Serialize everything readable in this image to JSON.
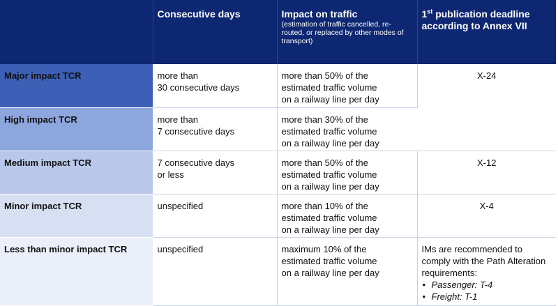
{
  "header": {
    "col1": "",
    "col2": "Consecutive days",
    "col3_title": "Impact on traffic",
    "col3_sub": "(estimation of traffic cancelled, re-routed, or replaced by other modes of transport)",
    "col4_num": "1",
    "col4_sup": "st",
    "col4_rest": "publication deadline according to Annex VII"
  },
  "rows": [
    {
      "label": "Major impact TCR",
      "days": "more than\n30 consecutive days",
      "impact": "more than 50% of the\nestimated traffic volume\non a railway line per day",
      "deadline": "X-24"
    },
    {
      "label": "High impact TCR",
      "days": "more than\n7 consecutive days",
      "impact": "more than 30% of the\nestimated traffic volume\non a railway line per day",
      "deadline": ""
    },
    {
      "label": "Medium impact TCR",
      "days": "7 consecutive days\nor less",
      "impact": "more than 50% of the\nestimated traffic volume\non a railway line per day",
      "deadline": "X-12"
    },
    {
      "label": "Minor impact TCR",
      "days": "unspecified",
      "impact": "more than 10% of the\nestimated traffic volume\non a railway line per day",
      "deadline": "X-4"
    },
    {
      "label": "Less than minor impact TCR",
      "days": "unspecified",
      "impact": "maximum 10% of the\nestimated traffic volume\non a railway line per day",
      "deadline_text": "IMs are recommended to comply with the Path Alteration requirements:",
      "deadline_items": [
        "Passenger: T-4",
        "Freight: T-1"
      ]
    }
  ],
  "colors": {
    "header_bg": "#0d2772",
    "major": "#3d5fb5",
    "high": "#8ea6de",
    "medium": "#b9c8ea",
    "minor": "#d7e0f3",
    "less_than_minor": "#eaeff9"
  }
}
